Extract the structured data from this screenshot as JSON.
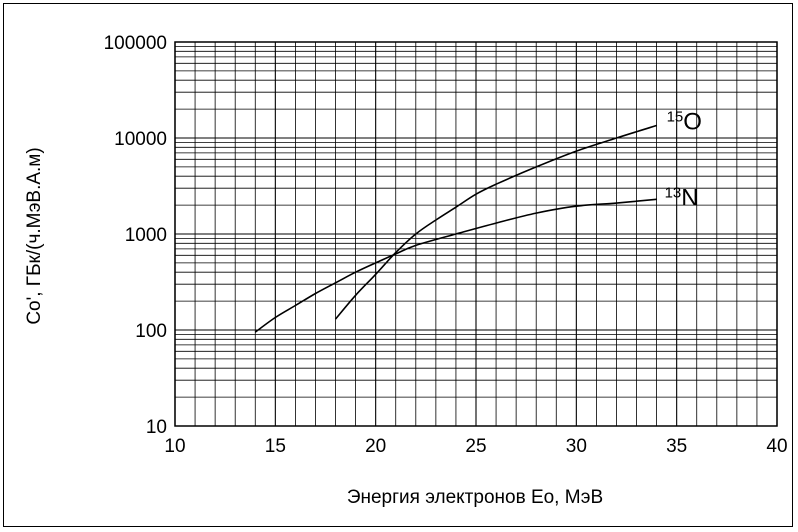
{
  "chart_data": {
    "type": "line",
    "xlabel": "Энергия электронов Eo, МэВ",
    "ylabel": "Co', ГБк/(ч.МэВ.А.м)",
    "xlim": [
      10,
      40
    ],
    "ylim": [
      10,
      100000
    ],
    "yscale": "log",
    "grid": true,
    "x_ticks": [
      10,
      15,
      20,
      25,
      30,
      35,
      40
    ],
    "y_ticks": [
      10,
      100,
      1000,
      10000,
      100000
    ],
    "x_tick_labels": [
      "10",
      "15",
      "20",
      "25",
      "30",
      "35",
      "40"
    ],
    "y_tick_labels": [
      "10",
      "100",
      "1000",
      "10000",
      "100000"
    ],
    "series": [
      {
        "name": "15O",
        "label_mass": "15",
        "label_symbol": "O",
        "x": [
          18,
          19,
          20,
          21,
          22,
          23,
          24,
          25,
          26,
          28,
          30,
          32,
          34
        ],
        "y": [
          130,
          230,
          380,
          640,
          1000,
          1400,
          1900,
          2600,
          3300,
          5000,
          7300,
          10000,
          13500
        ]
      },
      {
        "name": "13N",
        "label_mass": "13",
        "label_symbol": "N",
        "x": [
          14,
          15,
          16,
          17,
          18,
          19,
          20,
          21,
          22,
          24,
          26,
          28,
          30,
          32,
          34
        ],
        "y": [
          95,
          135,
          180,
          240,
          310,
          400,
          500,
          620,
          760,
          1000,
          1300,
          1650,
          1950,
          2100,
          2300
        ]
      }
    ]
  }
}
